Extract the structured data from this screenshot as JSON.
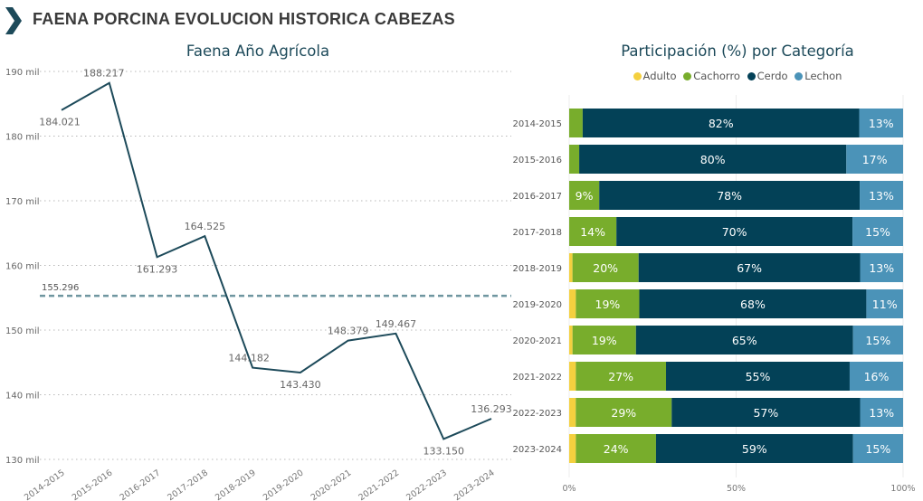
{
  "header": {
    "title": "FAENA PORCINA EVOLUCION HISTORICA CABEZAS",
    "icon": "chevron-right-icon"
  },
  "colors": {
    "line": "#1d4a5a",
    "avg_line": "#6f96a0",
    "Adulto": "#f4d03f",
    "Cachorro": "#78ad2c",
    "Cerdo": "#034157",
    "Lechon": "#4b93b8"
  },
  "chart_data": [
    {
      "type": "line",
      "title": "Faena Año Agrícola",
      "xlabel": "",
      "ylabel": "",
      "x": [
        "2014-2015",
        "2015-2016",
        "2016-2017",
        "2017-2018",
        "2018-2019",
        "2019-2020",
        "2020-2021",
        "2021-2022",
        "2022-2023",
        "2023-2024"
      ],
      "values": [
        184021,
        188217,
        161293,
        164525,
        144182,
        143430,
        148379,
        149467,
        133150,
        136293
      ],
      "data_labels": [
        "184.021",
        "188.217",
        "161.293",
        "164.525",
        "144.182",
        "143.430",
        "148.379",
        "149.467",
        "133.150",
        "136.293"
      ],
      "ylim": [
        130000,
        190000
      ],
      "y_ticks": [
        130000,
        140000,
        150000,
        160000,
        170000,
        180000,
        190000
      ],
      "y_tick_labels": [
        "130 mil",
        "140 mil",
        "150 mil",
        "160 mil",
        "170 mil",
        "180 mil",
        "190 mil"
      ],
      "average": {
        "value": 155296,
        "label": "155.296"
      },
      "grid": true
    },
    {
      "type": "bar",
      "orientation": "horizontal",
      "stacked": "100%",
      "title": "Participación (%) por Categoría",
      "legend": [
        "Adulto",
        "Cachorro",
        "Cerdo",
        "Lechon"
      ],
      "legend_position": "top-center",
      "categories": [
        "2014-2015",
        "2015-2016",
        "2016-2017",
        "2017-2018",
        "2018-2019",
        "2019-2020",
        "2020-2021",
        "2021-2022",
        "2022-2023",
        "2023-2024"
      ],
      "series": [
        {
          "name": "Adulto",
          "values": [
            0,
            0,
            0,
            0,
            1,
            2,
            1,
            2,
            2,
            2
          ],
          "labels": [
            "",
            "",
            "",
            "",
            "",
            "",
            "",
            "",
            "",
            ""
          ]
        },
        {
          "name": "Cachorro",
          "values": [
            4,
            3,
            9,
            14,
            20,
            19,
            19,
            27,
            29,
            24
          ],
          "labels": [
            "",
            "",
            "9%",
            "14%",
            "20%",
            "19%",
            "19%",
            "27%",
            "29%",
            "24%"
          ]
        },
        {
          "name": "Cerdo",
          "values": [
            82,
            80,
            78,
            70,
            67,
            68,
            65,
            55,
            57,
            59
          ],
          "labels": [
            "82%",
            "80%",
            "78%",
            "70%",
            "67%",
            "68%",
            "65%",
            "55%",
            "57%",
            "59%"
          ]
        },
        {
          "name": "Lechon",
          "values": [
            13,
            17,
            13,
            15,
            13,
            11,
            15,
            16,
            13,
            15
          ],
          "labels": [
            "13%",
            "17%",
            "13%",
            "15%",
            "13%",
            "11%",
            "15%",
            "16%",
            "13%",
            "15%"
          ]
        }
      ],
      "x_ticks": [
        0,
        50,
        100
      ],
      "x_tick_labels": [
        "0%",
        "50%",
        "100%"
      ],
      "xlim": [
        0,
        100
      ]
    }
  ]
}
